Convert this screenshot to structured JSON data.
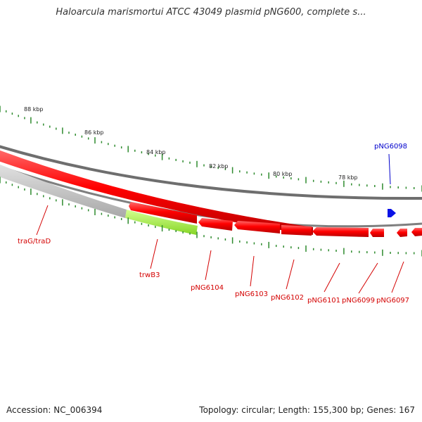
{
  "title": "Haloarcula marismortui ATCC 43049 plasmid pNG600, complete s...",
  "footer": {
    "accession": "Accession: NC_006394",
    "summary": "Topology: circular; Length: 155,300 bp; Genes: 167"
  },
  "colors": {
    "backbone": "#7a7a7a",
    "gene": "#ff0000",
    "gene_dark": "#c40000",
    "gene_grey": "#c0c0c0",
    "gene_green": "#a2f23c",
    "label_red": "#d40000",
    "label_blue": "#0000cc",
    "feature_blue": "#0a12e6",
    "tick_green": "#2e8b2e"
  },
  "ticks": [
    "88 kbp",
    "86 kbp",
    "84 kbp",
    "82 kbp",
    "80 kbp",
    "78 kbp"
  ],
  "genes": [
    {
      "name": "traG/traD",
      "color": "label_red"
    },
    {
      "name": "trwB3",
      "color": "label_red"
    },
    {
      "name": "pNG6104",
      "color": "label_red"
    },
    {
      "name": "pNG6103",
      "color": "label_red"
    },
    {
      "name": "pNG6102",
      "color": "label_red"
    },
    {
      "name": "pNG6101",
      "color": "label_red"
    },
    {
      "name": "pNG6099",
      "color": "label_red"
    },
    {
      "name": "pNG6097",
      "color": "label_red"
    },
    {
      "name": "pNG6098",
      "color": "label_blue"
    }
  ]
}
